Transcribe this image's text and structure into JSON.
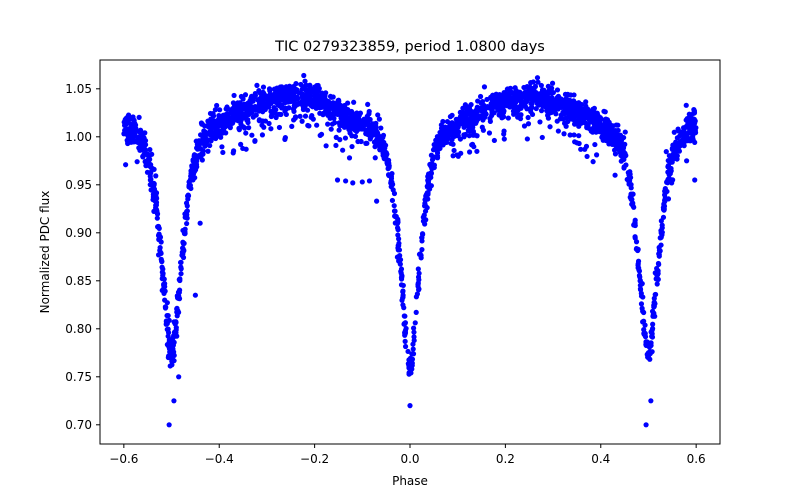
{
  "chart_data": {
    "type": "scatter",
    "title": "TIC 0279323859, period 1.0800 days",
    "xlabel": "Phase",
    "ylabel": "Normalized PDC flux",
    "xlim": [
      -0.65,
      0.65
    ],
    "ylim": [
      0.68,
      1.08
    ],
    "xticks": [
      -0.6,
      -0.4,
      -0.2,
      0.0,
      0.2,
      0.4,
      0.6
    ],
    "xtick_labels": [
      "−0.6",
      "−0.4",
      "−0.2",
      "0.0",
      "0.2",
      "0.4",
      "0.6"
    ],
    "yticks": [
      0.7,
      0.75,
      0.8,
      0.85,
      0.9,
      0.95,
      1.0,
      1.05
    ],
    "ytick_labels": [
      "0.70",
      "0.75",
      "0.80",
      "0.85",
      "0.90",
      "0.95",
      "1.00",
      "1.05"
    ],
    "grid": false,
    "marker_color": "#0000ff",
    "eclipses": [
      {
        "center": -0.5,
        "depth": 0.77,
        "width": 0.048
      },
      {
        "center": 0.0,
        "depth": 0.755,
        "width": 0.045
      },
      {
        "center": 0.5,
        "depth": 0.77,
        "width": 0.048
      }
    ],
    "baseline": 1.02,
    "amplitude": 0.022,
    "outliers": [
      {
        "x": -0.505,
        "y": 0.7
      },
      {
        "x": -0.495,
        "y": 0.725
      },
      {
        "x": -0.485,
        "y": 0.75
      },
      {
        "x": 0.495,
        "y": 0.7
      },
      {
        "x": 0.505,
        "y": 0.725
      },
      {
        "x": 0.0,
        "y": 0.72
      },
      {
        "x": -0.152,
        "y": 0.955
      },
      {
        "x": -0.135,
        "y": 0.954
      },
      {
        "x": -0.12,
        "y": 0.952
      },
      {
        "x": -0.1,
        "y": 0.953
      },
      {
        "x": -0.085,
        "y": 0.954
      },
      {
        "x": 0.597,
        "y": 0.955
      },
      {
        "x": 0.58,
        "y": 0.975
      },
      {
        "x": -0.45,
        "y": 0.835
      },
      {
        "x": -0.44,
        "y": 0.91
      },
      {
        "x": -0.592,
        "y": 0.993
      },
      {
        "x": -0.07,
        "y": 0.933
      },
      {
        "x": 0.37,
        "y": 0.99
      },
      {
        "x": 0.43,
        "y": 0.96
      }
    ]
  }
}
